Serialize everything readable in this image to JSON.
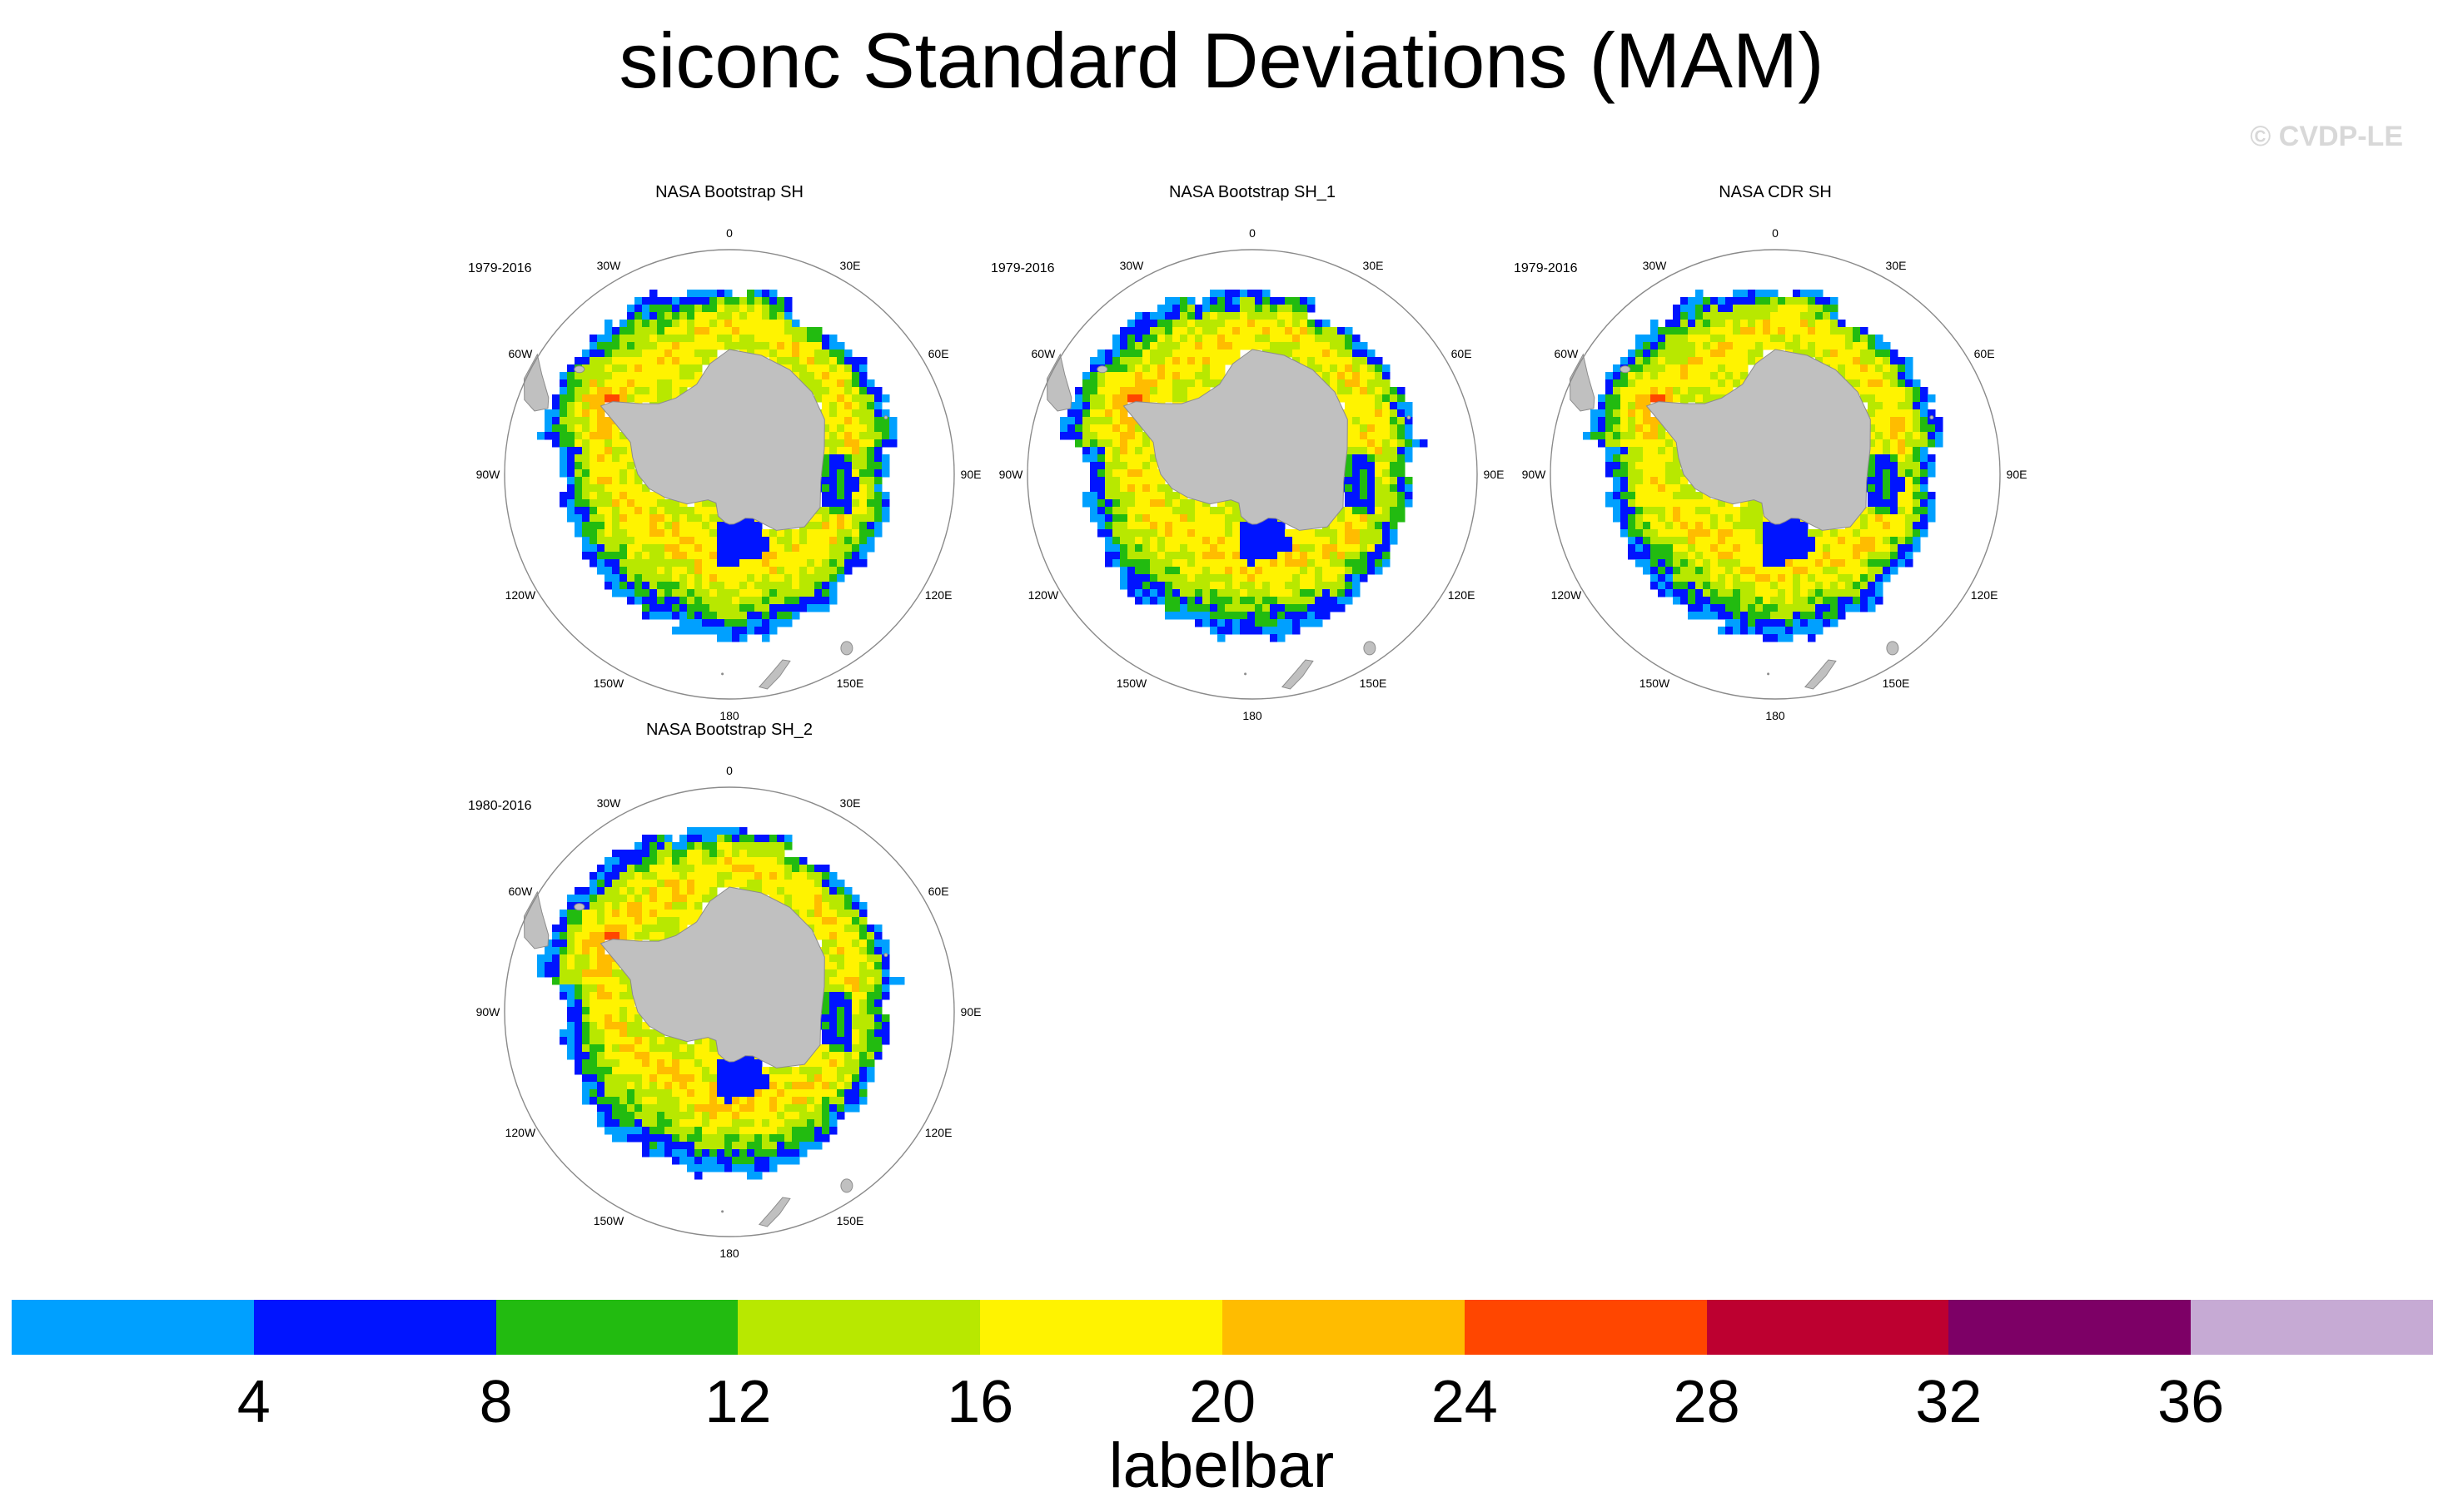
{
  "chart_data": {
    "type": "heatmap",
    "title": "siconc Standard Deviations (MAM)",
    "watermark": "© CVDP-LE",
    "projection": "south-polar-stereographic",
    "longitude_labels": [
      "0",
      "30E",
      "60E",
      "90E",
      "120E",
      "150E",
      "180",
      "150W",
      "120W",
      "90W",
      "60W",
      "30W"
    ],
    "panels": [
      {
        "title": "NASA Bootstrap SH",
        "years": "1979-2016"
      },
      {
        "title": "NASA Bootstrap SH_1",
        "years": "1979-2016"
      },
      {
        "title": "NASA CDR SH",
        "years": "1979-2016"
      },
      {
        "title": "NASA Bootstrap SH_2",
        "years": "1980-2016"
      }
    ],
    "colorbar": {
      "label": "labelbar",
      "levels": [
        4,
        8,
        12,
        16,
        20,
        24,
        28,
        32,
        36
      ],
      "tick_labels": [
        "4",
        "8",
        "12",
        "16",
        "20",
        "24",
        "28",
        "32",
        "36"
      ],
      "colors": [
        "#00a0ff",
        "#0014ff",
        "#22bb10",
        "#b8e800",
        "#fff300",
        "#ffbc00",
        "#ff4600",
        "#bd0030",
        "#7d0066",
        "#c6aad4"
      ]
    },
    "palette": {
      "land": "#c0c0c0",
      "coast": "#8c8c8c",
      "circle": "#8a8a8a"
    }
  }
}
